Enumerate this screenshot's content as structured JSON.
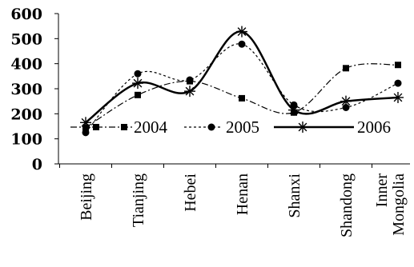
{
  "chart_data": {
    "type": "line",
    "categories": [
      "Beijing",
      "Tianjing",
      "Hebei",
      "Henan",
      "Shanxi",
      "Shandong",
      "Inner Mongolia"
    ],
    "category_lines": [
      [
        "Beijing"
      ],
      [
        "Tianjing"
      ],
      [
        "Hebei"
      ],
      [
        "Henan"
      ],
      [
        "Shanxi"
      ],
      [
        "Shandong"
      ],
      [
        "Inner",
        "Mongolia"
      ]
    ],
    "ylim": [
      0,
      600
    ],
    "yticks": [
      0,
      100,
      200,
      300,
      400,
      500,
      600
    ],
    "title": "",
    "xlabel": "",
    "ylabel": "",
    "legend_position": "inside-bottom",
    "grid": false,
    "series": [
      {
        "name": "2004",
        "marker": "square",
        "line": "dash-dot",
        "values": [
          145,
          275,
          330,
          262,
          205,
          382,
          395
        ]
      },
      {
        "name": "2005",
        "marker": "circle",
        "line": "dotted",
        "values": [
          125,
          360,
          335,
          478,
          235,
          225,
          322
        ]
      },
      {
        "name": "2006",
        "marker": "star",
        "line": "solid",
        "values": [
          165,
          322,
          290,
          528,
          215,
          250,
          265
        ]
      }
    ]
  },
  "colors": {
    "line": "#000000",
    "background": "#ffffff"
  }
}
